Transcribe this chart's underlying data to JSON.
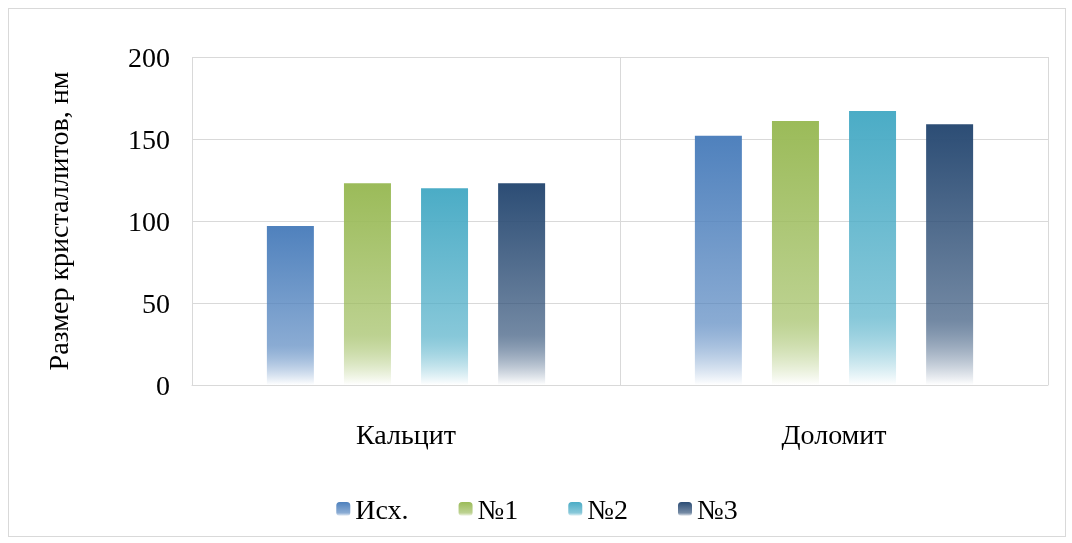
{
  "chart_data": {
    "type": "bar",
    "ylabel": "Размер кристаллитов, нм",
    "categories": [
      "Кальцит",
      "Доломит"
    ],
    "series": [
      {
        "name": "Исх.",
        "color": "#4f81bd",
        "values": [
          97,
          152
        ]
      },
      {
        "name": "№1",
        "color": "#9bbb59",
        "values": [
          123,
          161
        ]
      },
      {
        "name": "№2",
        "color": "#4bacc6",
        "values": [
          120,
          167
        ]
      },
      {
        "name": "№3",
        "color": "#2c4d75",
        "values": [
          123,
          159
        ]
      }
    ],
    "ylim": [
      0,
      200
    ],
    "yticks": [
      0,
      50,
      100,
      150,
      200
    ],
    "grid": true,
    "legend": "bottom"
  }
}
